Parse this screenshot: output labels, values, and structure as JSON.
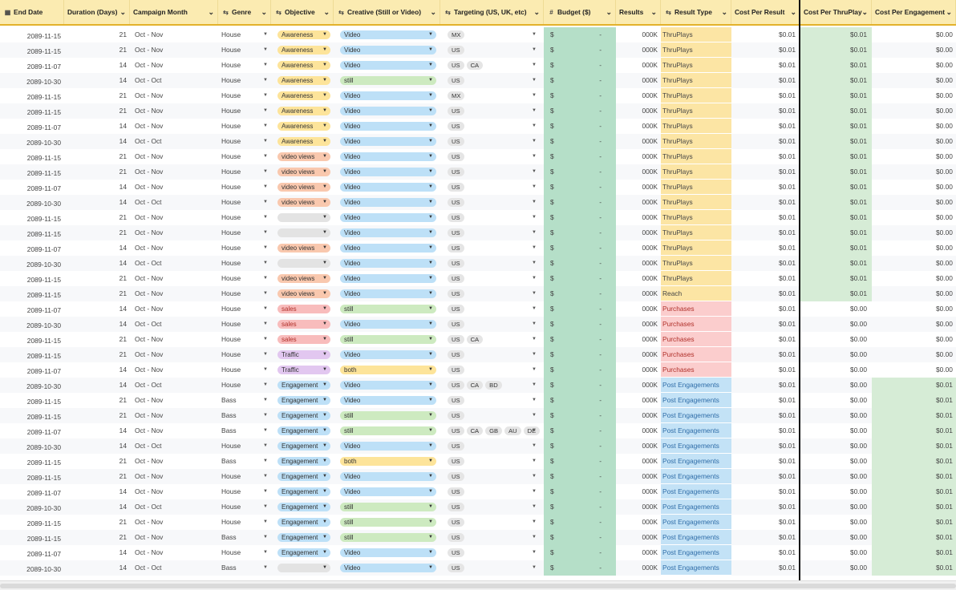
{
  "headers": {
    "end_date": "End Date",
    "duration": "Duration (Days)",
    "campaign_month": "Campaign Month",
    "genre": "Genre",
    "objective": "Objective",
    "creative": "Creative (Still or Video)",
    "targeting": "Targeting (US, UK, etc)",
    "budget": "Budget ($)",
    "results": "Results",
    "result_type": "Result Type",
    "cost_per_result": "Cost Per Result",
    "cost_per_thruplay": "Cost Per ThruPlay",
    "cost_per_engagement": "Cost Per Engagement"
  },
  "icons": {
    "end_date": "calendar-icon",
    "genre": "link-icon",
    "objective": "link-icon",
    "creative": "link-icon",
    "targeting": "link-icon",
    "budget": "hash-icon",
    "result_type": "link-icon"
  },
  "colors": {
    "header_bg": "#fbebb1",
    "awareness": "#fde49a",
    "video_views": "#f9c8ae",
    "sales": "#f8bcbc",
    "traffic": "#e2c7f0",
    "engagement": "#bde0f7",
    "blank_objective": "#e3e3e3",
    "video": "#bde0f7",
    "still": "#cdeac0",
    "both": "#fde49a",
    "budget_bg": "#b5dfc8",
    "thruplays_bg": "#fce5a4",
    "purchases_bg": "#fbcdcd",
    "engagements_bg": "#c3e2f6",
    "cost_green": "#d6ecd6"
  },
  "rows": [
    {
      "end": "2089-11-15",
      "dur": "21",
      "month": "Oct - Nov",
      "genre": "House",
      "obj": "Awareness",
      "cr": "Video",
      "tgt": [
        "MX"
      ],
      "bud_cur": "$",
      "bud_val": "-",
      "res": "000K",
      "rtype": "ThruPlays",
      "cpr": "$0.01",
      "cpt": "$0.01",
      "cpe": "$0.00"
    },
    {
      "end": "2089-11-15",
      "dur": "21",
      "month": "Oct - Nov",
      "genre": "House",
      "obj": "Awareness",
      "cr": "Video",
      "tgt": [
        "US"
      ],
      "bud_cur": "$",
      "bud_val": "-",
      "res": "000K",
      "rtype": "ThruPlays",
      "cpr": "$0.01",
      "cpt": "$0.01",
      "cpe": "$0.00"
    },
    {
      "end": "2089-11-07",
      "dur": "14",
      "month": "Oct - Nov",
      "genre": "House",
      "obj": "Awareness",
      "cr": "Video",
      "tgt": [
        "US",
        "CA"
      ],
      "bud_cur": "$",
      "bud_val": "-",
      "res": "000K",
      "rtype": "ThruPlays",
      "cpr": "$0.01",
      "cpt": "$0.01",
      "cpe": "$0.00"
    },
    {
      "end": "2089-10-30",
      "dur": "14",
      "month": "Oct - Oct",
      "genre": "House",
      "obj": "Awareness",
      "cr": "still",
      "tgt": [
        "US"
      ],
      "bud_cur": "$",
      "bud_val": "-",
      "res": "000K",
      "rtype": "ThruPlays",
      "cpr": "$0.01",
      "cpt": "$0.01",
      "cpe": "$0.00"
    },
    {
      "end": "2089-11-15",
      "dur": "21",
      "month": "Oct - Nov",
      "genre": "House",
      "obj": "Awareness",
      "cr": "Video",
      "tgt": [
        "MX"
      ],
      "bud_cur": "$",
      "bud_val": "-",
      "res": "000K",
      "rtype": "ThruPlays",
      "cpr": "$0.01",
      "cpt": "$0.01",
      "cpe": "$0.00"
    },
    {
      "end": "2089-11-15",
      "dur": "21",
      "month": "Oct - Nov",
      "genre": "House",
      "obj": "Awareness",
      "cr": "Video",
      "tgt": [
        "US"
      ],
      "bud_cur": "$",
      "bud_val": "-",
      "res": "000K",
      "rtype": "ThruPlays",
      "cpr": "$0.01",
      "cpt": "$0.01",
      "cpe": "$0.00"
    },
    {
      "end": "2089-11-07",
      "dur": "14",
      "month": "Oct - Nov",
      "genre": "House",
      "obj": "Awareness",
      "cr": "Video",
      "tgt": [
        "US"
      ],
      "bud_cur": "$",
      "bud_val": "-",
      "res": "000K",
      "rtype": "ThruPlays",
      "cpr": "$0.01",
      "cpt": "$0.01",
      "cpe": "$0.00"
    },
    {
      "end": "2089-10-30",
      "dur": "14",
      "month": "Oct - Oct",
      "genre": "House",
      "obj": "Awareness",
      "cr": "Video",
      "tgt": [
        "US"
      ],
      "bud_cur": "$",
      "bud_val": "-",
      "res": "000K",
      "rtype": "ThruPlays",
      "cpr": "$0.01",
      "cpt": "$0.01",
      "cpe": "$0.00"
    },
    {
      "end": "2089-11-15",
      "dur": "21",
      "month": "Oct - Nov",
      "genre": "House",
      "obj": "video views",
      "cr": "Video",
      "tgt": [
        "US"
      ],
      "bud_cur": "$",
      "bud_val": "-",
      "res": "000K",
      "rtype": "ThruPlays",
      "cpr": "$0.01",
      "cpt": "$0.01",
      "cpe": "$0.00"
    },
    {
      "end": "2089-11-15",
      "dur": "21",
      "month": "Oct - Nov",
      "genre": "House",
      "obj": "video views",
      "cr": "Video",
      "tgt": [
        "US"
      ],
      "bud_cur": "$",
      "bud_val": "-",
      "res": "000K",
      "rtype": "ThruPlays",
      "cpr": "$0.01",
      "cpt": "$0.01",
      "cpe": "$0.00"
    },
    {
      "end": "2089-11-07",
      "dur": "14",
      "month": "Oct - Nov",
      "genre": "House",
      "obj": "video views",
      "cr": "Video",
      "tgt": [
        "US"
      ],
      "bud_cur": "$",
      "bud_val": "-",
      "res": "000K",
      "rtype": "ThruPlays",
      "cpr": "$0.01",
      "cpt": "$0.01",
      "cpe": "$0.00"
    },
    {
      "end": "2089-10-30",
      "dur": "14",
      "month": "Oct - Oct",
      "genre": "House",
      "obj": "video views",
      "cr": "Video",
      "tgt": [
        "US"
      ],
      "bud_cur": "$",
      "bud_val": "-",
      "res": "000K",
      "rtype": "ThruPlays",
      "cpr": "$0.01",
      "cpt": "$0.01",
      "cpe": "$0.00"
    },
    {
      "end": "2089-11-15",
      "dur": "21",
      "month": "Oct - Nov",
      "genre": "House",
      "obj": "",
      "cr": "Video",
      "tgt": [
        "US"
      ],
      "bud_cur": "$",
      "bud_val": "-",
      "res": "000K",
      "rtype": "ThruPlays",
      "cpr": "$0.01",
      "cpt": "$0.01",
      "cpe": "$0.00"
    },
    {
      "end": "2089-11-15",
      "dur": "21",
      "month": "Oct - Nov",
      "genre": "House",
      "obj": "",
      "cr": "Video",
      "tgt": [
        "US"
      ],
      "bud_cur": "$",
      "bud_val": "-",
      "res": "000K",
      "rtype": "ThruPlays",
      "cpr": "$0.01",
      "cpt": "$0.01",
      "cpe": "$0.00"
    },
    {
      "end": "2089-11-07",
      "dur": "14",
      "month": "Oct - Nov",
      "genre": "House",
      "obj": "video views",
      "cr": "Video",
      "tgt": [
        "US"
      ],
      "bud_cur": "$",
      "bud_val": "-",
      "res": "000K",
      "rtype": "ThruPlays",
      "cpr": "$0.01",
      "cpt": "$0.01",
      "cpe": "$0.00"
    },
    {
      "end": "2089-10-30",
      "dur": "14",
      "month": "Oct - Oct",
      "genre": "House",
      "obj": "",
      "cr": "Video",
      "tgt": [
        "US"
      ],
      "bud_cur": "$",
      "bud_val": "-",
      "res": "000K",
      "rtype": "ThruPlays",
      "cpr": "$0.01",
      "cpt": "$0.01",
      "cpe": "$0.00"
    },
    {
      "end": "2089-11-15",
      "dur": "21",
      "month": "Oct - Nov",
      "genre": "House",
      "obj": "video views",
      "cr": "Video",
      "tgt": [
        "US"
      ],
      "bud_cur": "$",
      "bud_val": "-",
      "res": "000K",
      "rtype": "ThruPlays",
      "cpr": "$0.01",
      "cpt": "$0.01",
      "cpe": "$0.00"
    },
    {
      "end": "2089-11-15",
      "dur": "21",
      "month": "Oct - Nov",
      "genre": "House",
      "obj": "video views",
      "cr": "Video",
      "tgt": [
        "US"
      ],
      "bud_cur": "$",
      "bud_val": "-",
      "res": "000K",
      "rtype": "Reach",
      "cpr": "$0.01",
      "cpt": "$0.01",
      "cpe": "$0.00"
    },
    {
      "end": "2089-11-07",
      "dur": "14",
      "month": "Oct - Nov",
      "genre": "House",
      "obj": "sales",
      "cr": "still",
      "tgt": [
        "US"
      ],
      "bud_cur": "$",
      "bud_val": "-",
      "res": "000K",
      "rtype": "Purchases",
      "cpr": "$0.01",
      "cpt": "$0.00",
      "cpe": "$0.00"
    },
    {
      "end": "2089-10-30",
      "dur": "14",
      "month": "Oct - Oct",
      "genre": "House",
      "obj": "sales",
      "cr": "Video",
      "tgt": [
        "US"
      ],
      "bud_cur": "$",
      "bud_val": "-",
      "res": "000K",
      "rtype": "Purchases",
      "cpr": "$0.01",
      "cpt": "$0.00",
      "cpe": "$0.00"
    },
    {
      "end": "2089-11-15",
      "dur": "21",
      "month": "Oct - Nov",
      "genre": "House",
      "obj": "sales",
      "cr": "still",
      "tgt": [
        "US",
        "CA"
      ],
      "bud_cur": "$",
      "bud_val": "-",
      "res": "000K",
      "rtype": "Purchases",
      "cpr": "$0.01",
      "cpt": "$0.00",
      "cpe": "$0.00"
    },
    {
      "end": "2089-11-15",
      "dur": "21",
      "month": "Oct - Nov",
      "genre": "House",
      "obj": "Traffic",
      "cr": "Video",
      "tgt": [
        "US"
      ],
      "bud_cur": "$",
      "bud_val": "-",
      "res": "000K",
      "rtype": "Purchases",
      "cpr": "$0.01",
      "cpt": "$0.00",
      "cpe": "$0.00"
    },
    {
      "end": "2089-11-07",
      "dur": "14",
      "month": "Oct - Nov",
      "genre": "House",
      "obj": "Traffic",
      "cr": "both",
      "tgt": [
        "US"
      ],
      "bud_cur": "$",
      "bud_val": "-",
      "res": "000K",
      "rtype": "Purchases",
      "cpr": "$0.01",
      "cpt": "$0.00",
      "cpe": "$0.00"
    },
    {
      "end": "2089-10-30",
      "dur": "14",
      "month": "Oct - Oct",
      "genre": "House",
      "obj": "Engagement",
      "cr": "Video",
      "tgt": [
        "US",
        "CA",
        "BD"
      ],
      "bud_cur": "$",
      "bud_val": "-",
      "res": "000K",
      "rtype": "Post Engagements",
      "cpr": "$0.01",
      "cpt": "$0.00",
      "cpe": "$0.01"
    },
    {
      "end": "2089-11-15",
      "dur": "21",
      "month": "Oct - Nov",
      "genre": "Bass",
      "obj": "Engagement",
      "cr": "Video",
      "tgt": [
        "US"
      ],
      "bud_cur": "$",
      "bud_val": "-",
      "res": "000K",
      "rtype": "Post Engagements",
      "cpr": "$0.01",
      "cpt": "$0.00",
      "cpe": "$0.01"
    },
    {
      "end": "2089-11-15",
      "dur": "21",
      "month": "Oct - Nov",
      "genre": "Bass",
      "obj": "Engagement",
      "cr": "still",
      "tgt": [
        "US"
      ],
      "bud_cur": "$",
      "bud_val": "-",
      "res": "000K",
      "rtype": "Post Engagements",
      "cpr": "$0.01",
      "cpt": "$0.00",
      "cpe": "$0.01"
    },
    {
      "end": "2089-11-07",
      "dur": "14",
      "month": "Oct - Nov",
      "genre": "Bass",
      "obj": "Engagement",
      "cr": "still",
      "tgt": [
        "US",
        "CA",
        "GB",
        "AU",
        "DE"
      ],
      "bud_cur": "$",
      "bud_val": "-",
      "res": "000K",
      "rtype": "Post Engagements",
      "cpr": "$0.01",
      "cpt": "$0.00",
      "cpe": "$0.01"
    },
    {
      "end": "2089-10-30",
      "dur": "14",
      "month": "Oct - Oct",
      "genre": "House",
      "obj": "Engagement",
      "cr": "Video",
      "tgt": [
        "US"
      ],
      "bud_cur": "$",
      "bud_val": "-",
      "res": "000K",
      "rtype": "Post Engagements",
      "cpr": "$0.01",
      "cpt": "$0.00",
      "cpe": "$0.01"
    },
    {
      "end": "2089-11-15",
      "dur": "21",
      "month": "Oct - Nov",
      "genre": "Bass",
      "obj": "Engagement",
      "cr": "both",
      "tgt": [
        "US"
      ],
      "bud_cur": "$",
      "bud_val": "-",
      "res": "000K",
      "rtype": "Post Engagements",
      "cpr": "$0.01",
      "cpt": "$0.00",
      "cpe": "$0.01"
    },
    {
      "end": "2089-11-15",
      "dur": "21",
      "month": "Oct - Nov",
      "genre": "House",
      "obj": "Engagement",
      "cr": "Video",
      "tgt": [
        "US"
      ],
      "bud_cur": "$",
      "bud_val": "-",
      "res": "000K",
      "rtype": "Post Engagements",
      "cpr": "$0.01",
      "cpt": "$0.00",
      "cpe": "$0.01"
    },
    {
      "end": "2089-11-07",
      "dur": "14",
      "month": "Oct - Nov",
      "genre": "House",
      "obj": "Engagement",
      "cr": "Video",
      "tgt": [
        "US"
      ],
      "bud_cur": "$",
      "bud_val": "-",
      "res": "000K",
      "rtype": "Post Engagements",
      "cpr": "$0.01",
      "cpt": "$0.00",
      "cpe": "$0.01"
    },
    {
      "end": "2089-10-30",
      "dur": "14",
      "month": "Oct - Oct",
      "genre": "House",
      "obj": "Engagement",
      "cr": "still",
      "tgt": [
        "US"
      ],
      "bud_cur": "$",
      "bud_val": "-",
      "res": "000K",
      "rtype": "Post Engagements",
      "cpr": "$0.01",
      "cpt": "$0.00",
      "cpe": "$0.01"
    },
    {
      "end": "2089-11-15",
      "dur": "21",
      "month": "Oct - Nov",
      "genre": "House",
      "obj": "Engagement",
      "cr": "still",
      "tgt": [
        "US"
      ],
      "bud_cur": "$",
      "bud_val": "-",
      "res": "000K",
      "rtype": "Post Engagements",
      "cpr": "$0.01",
      "cpt": "$0.00",
      "cpe": "$0.01"
    },
    {
      "end": "2089-11-15",
      "dur": "21",
      "month": "Oct - Nov",
      "genre": "Bass",
      "obj": "Engagement",
      "cr": "still",
      "tgt": [
        "US"
      ],
      "bud_cur": "$",
      "bud_val": "-",
      "res": "000K",
      "rtype": "Post Engagements",
      "cpr": "$0.01",
      "cpt": "$0.00",
      "cpe": "$0.01"
    },
    {
      "end": "2089-11-07",
      "dur": "14",
      "month": "Oct - Nov",
      "genre": "House",
      "obj": "Engagement",
      "cr": "Video",
      "tgt": [
        "US"
      ],
      "bud_cur": "$",
      "bud_val": "-",
      "res": "000K",
      "rtype": "Post Engagements",
      "cpr": "$0.01",
      "cpt": "$0.00",
      "cpe": "$0.01"
    },
    {
      "end": "2089-10-30",
      "dur": "14",
      "month": "Oct - Oct",
      "genre": "Bass",
      "obj": "",
      "cr": "Video",
      "tgt": [
        "US"
      ],
      "bud_cur": "$",
      "bud_val": "-",
      "res": "000K",
      "rtype": "Post Engagements",
      "cpr": "$0.01",
      "cpt": "$0.00",
      "cpe": "$0.01"
    }
  ]
}
